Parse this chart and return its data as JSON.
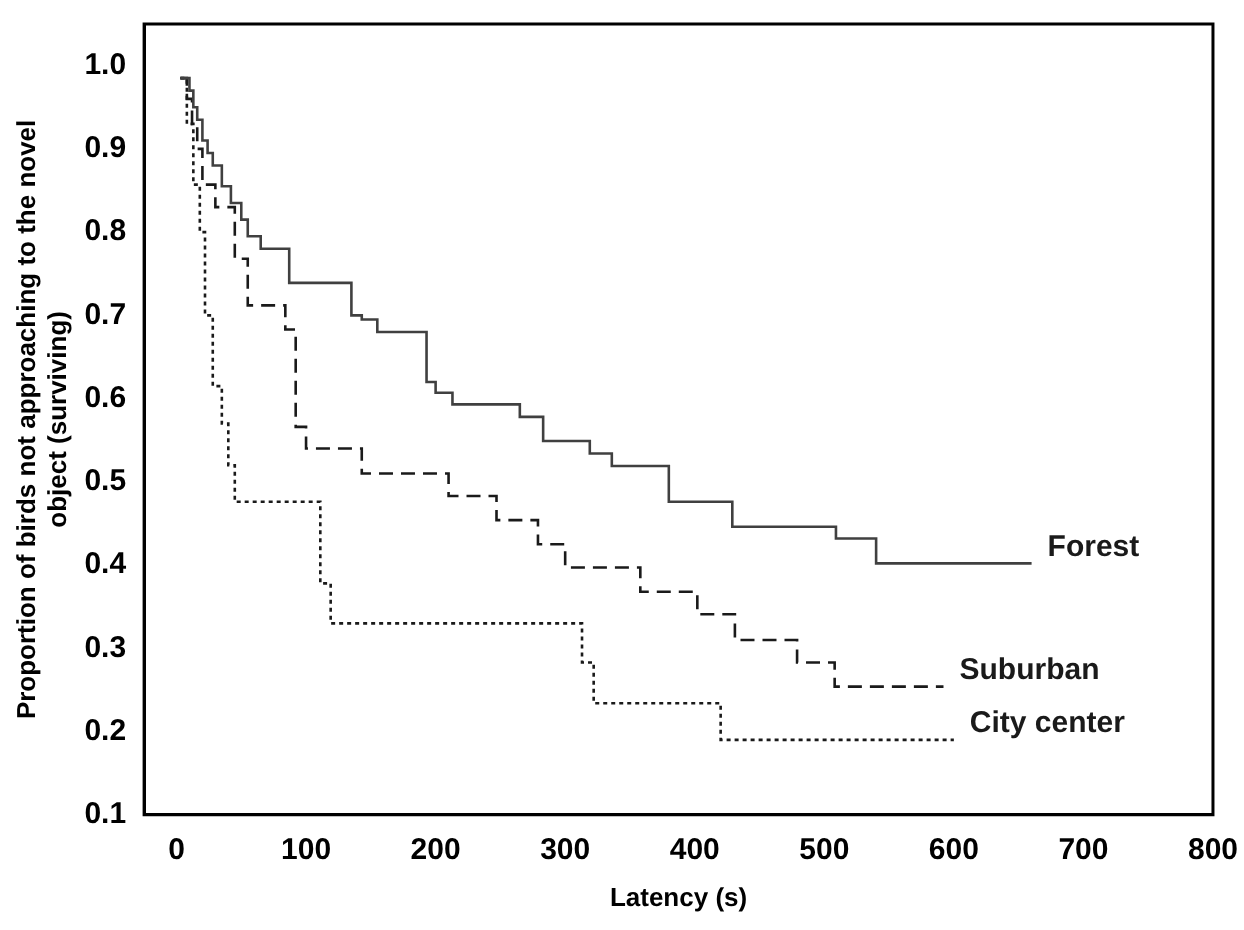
{
  "chart_data": {
    "type": "step",
    "xlabel": "Latency (s)",
    "ylabel": "Proportion of birds not approaching to the novel object (surviving)",
    "xlim": [
      -25,
      800
    ],
    "ylim": [
      0.1,
      1.05
    ],
    "xticks": [
      0,
      100,
      200,
      300,
      400,
      500,
      600,
      700,
      800
    ],
    "yticks": [
      0.1,
      0.2,
      0.3,
      0.4,
      0.5,
      0.6,
      0.7,
      0.8,
      0.9,
      {
        "value": 1,
        "label": "1.0"
      }
    ],
    "grid": false,
    "legend": false,
    "marker": "none",
    "series": [
      {
        "name": "Forest",
        "color": "#404040",
        "line_style": "solid",
        "x": [
          3,
          10,
          13,
          16,
          20,
          24,
          28,
          35,
          42,
          50,
          55,
          65,
          87,
          135,
          143,
          155,
          193,
          200,
          213,
          265,
          283,
          319,
          336,
          380,
          429,
          509,
          540,
          660
        ],
        "values": [
          0.985,
          0.97,
          0.95,
          0.935,
          0.91,
          0.895,
          0.88,
          0.855,
          0.835,
          0.815,
          0.795,
          0.78,
          0.739,
          0.7,
          0.695,
          0.68,
          0.62,
          0.607,
          0.593,
          0.578,
          0.549,
          0.534,
          0.519,
          0.476,
          0.446,
          0.432,
          0.402,
          0.402
        ]
      },
      {
        "name": "Suburban",
        "color": "#1a1a1a",
        "line_style": "dashed",
        "x": [
          3,
          8,
          12,
          16,
          20,
          30,
          45,
          55,
          84,
          92,
          100,
          143,
          210,
          247,
          279,
          300,
          358,
          402,
          431,
          479,
          508,
          592
        ],
        "values": [
          0.985,
          0.96,
          0.93,
          0.9,
          0.857,
          0.83,
          0.768,
          0.712,
          0.683,
          0.566,
          0.54,
          0.51,
          0.483,
          0.454,
          0.425,
          0.397,
          0.368,
          0.341,
          0.31,
          0.283,
          0.254,
          0.254
        ]
      },
      {
        "name": "City center",
        "color": "#1a1a1a",
        "line_style": "dotted",
        "x": [
          3,
          8,
          13,
          18,
          22,
          28,
          35,
          40,
          45,
          111,
          119,
          313,
          322,
          420,
          600
        ],
        "values": [
          0.985,
          0.93,
          0.857,
          0.8,
          0.7,
          0.615,
          0.57,
          0.52,
          0.476,
          0.378,
          0.33,
          0.283,
          0.234,
          0.19,
          0.19
        ]
      }
    ]
  }
}
